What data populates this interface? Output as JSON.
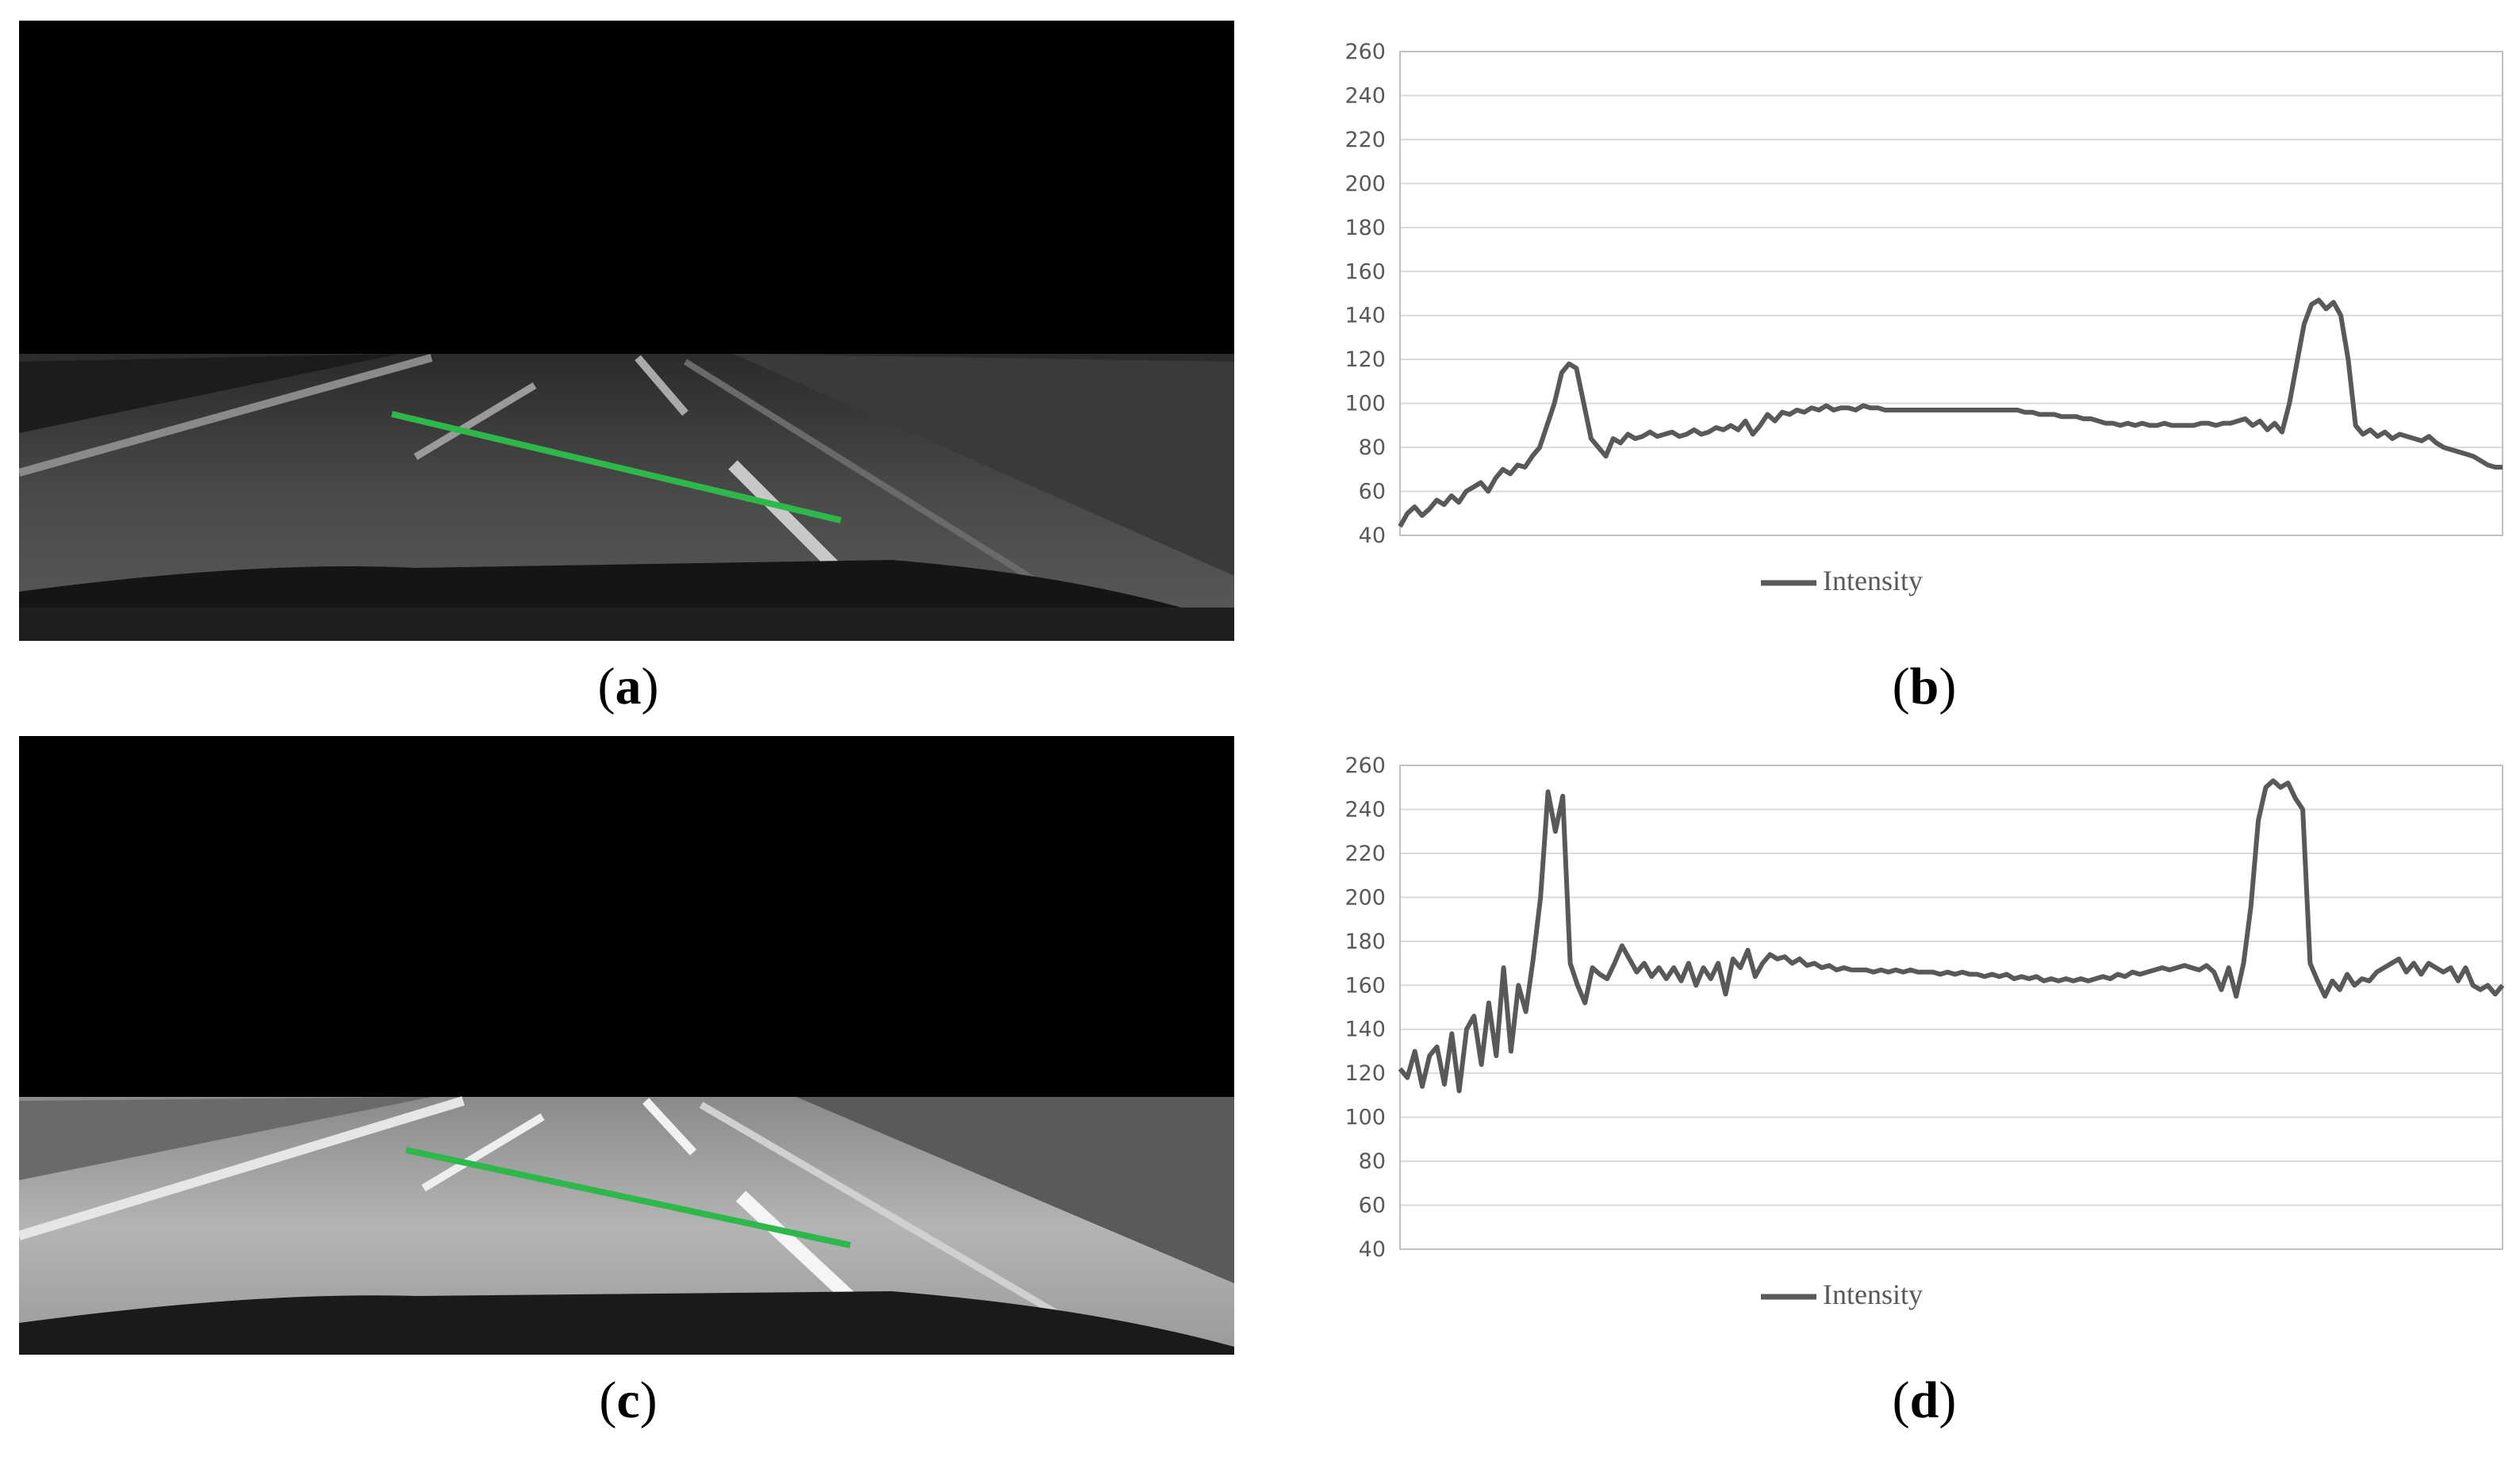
{
  "captions": {
    "a": "a",
    "b": "b",
    "c": "c",
    "d": "d"
  },
  "colors": {
    "series_line": "#595959",
    "grid": "#d9d9d9",
    "axis_text": "#595959",
    "profile_line": "#2eb84a"
  },
  "chart_data": [
    {
      "type": "line",
      "panel": "b",
      "title": "",
      "xlabel": "",
      "ylabel": "",
      "ylim": [
        40,
        260
      ],
      "yticks": [
        40,
        60,
        80,
        100,
        120,
        140,
        160,
        180,
        200,
        220,
        240,
        260
      ],
      "grid": true,
      "legend": "bottom-center",
      "series": [
        {
          "name": "Intensity",
          "values": [
            44,
            50,
            53,
            49,
            52,
            56,
            54,
            58,
            55,
            60,
            62,
            64,
            60,
            66,
            70,
            68,
            72,
            71,
            76,
            80,
            90,
            100,
            114,
            118,
            116,
            100,
            84,
            80,
            76,
            84,
            82,
            86,
            84,
            85,
            87,
            85,
            86,
            87,
            85,
            86,
            88,
            86,
            87,
            89,
            88,
            90,
            88,
            92,
            86,
            90,
            95,
            92,
            96,
            95,
            97,
            96,
            98,
            97,
            99,
            97,
            98,
            98,
            97,
            99,
            98,
            98,
            97,
            97,
            97,
            97,
            97,
            97,
            97,
            97,
            97,
            97,
            97,
            97,
            97,
            97,
            97,
            97,
            97,
            97,
            97,
            96,
            96,
            95,
            95,
            95,
            94,
            94,
            94,
            93,
            93,
            92,
            91,
            91,
            90,
            91,
            90,
            91,
            90,
            90,
            91,
            90,
            90,
            90,
            90,
            91,
            91,
            90,
            91,
            91,
            92,
            93,
            90,
            92,
            88,
            91,
            87,
            100,
            118,
            136,
            145,
            147,
            143,
            146,
            140,
            120,
            90,
            86,
            88,
            85,
            87,
            84,
            86,
            85,
            84,
            83,
            85,
            82,
            80,
            79,
            78,
            77,
            76,
            74,
            72,
            71,
            71
          ]
        }
      ]
    },
    {
      "type": "line",
      "panel": "d",
      "title": "",
      "xlabel": "",
      "ylabel": "",
      "ylim": [
        40,
        260
      ],
      "yticks": [
        40,
        60,
        80,
        100,
        120,
        140,
        160,
        180,
        200,
        220,
        240,
        260
      ],
      "grid": true,
      "legend": "bottom-center",
      "series": [
        {
          "name": "Intensity",
          "values": [
            122,
            118,
            130,
            114,
            128,
            132,
            115,
            138,
            112,
            140,
            146,
            124,
            152,
            128,
            168,
            130,
            160,
            148,
            172,
            200,
            248,
            230,
            246,
            170,
            160,
            152,
            168,
            165,
            163,
            170,
            178,
            172,
            166,
            170,
            164,
            168,
            163,
            168,
            162,
            170,
            160,
            168,
            163,
            170,
            156,
            172,
            168,
            176,
            164,
            170,
            174,
            172,
            173,
            170,
            172,
            169,
            170,
            168,
            169,
            167,
            168,
            167,
            167,
            167,
            166,
            167,
            166,
            167,
            166,
            167,
            166,
            166,
            166,
            165,
            166,
            165,
            166,
            165,
            165,
            164,
            165,
            164,
            165,
            163,
            164,
            163,
            164,
            162,
            163,
            162,
            163,
            162,
            163,
            162,
            163,
            164,
            163,
            165,
            164,
            166,
            165,
            166,
            167,
            168,
            167,
            168,
            169,
            168,
            167,
            169,
            166,
            158,
            168,
            155,
            170,
            196,
            235,
            250,
            253,
            250,
            252,
            245,
            240,
            170,
            162,
            155,
            162,
            158,
            165,
            160,
            163,
            162,
            166,
            168,
            170,
            172,
            166,
            170,
            165,
            170,
            168,
            166,
            168,
            162,
            168,
            160,
            158,
            160,
            156,
            160
          ]
        }
      ]
    }
  ]
}
